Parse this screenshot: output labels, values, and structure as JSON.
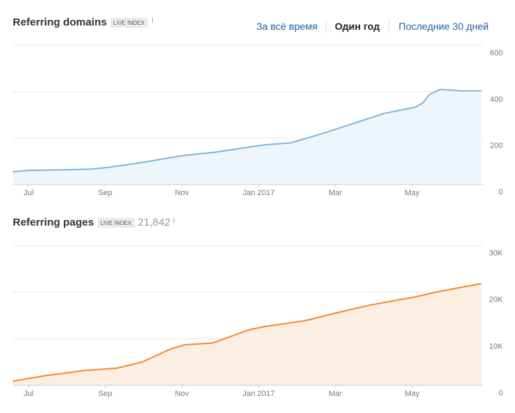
{
  "header": {
    "periods": [
      "За всё время",
      "Один год",
      "Последние 30 дней"
    ]
  },
  "chart_data": [
    {
      "type": "area",
      "title": "Referring domains",
      "badge": "LIVE INDEX",
      "info": "i",
      "color": "#7eb5dc",
      "fill": "#eef6fd",
      "x": [
        -0.41,
        0,
        1.11,
        1.67,
        2.04,
        2.96,
        4.07,
        4.81,
        6.15,
        6.85,
        7.78,
        8.52,
        9.26,
        10.09,
        10.28,
        10.46,
        10.74,
        11.3,
        11.81
      ],
      "values": [
        55,
        61,
        64,
        67,
        73,
        95,
        126,
        138,
        171,
        180,
        226,
        266,
        306,
        334,
        352,
        389,
        410,
        404,
        404
      ],
      "xlim": [
        -0.41,
        11.85
      ],
      "ylim": [
        0,
        600
      ],
      "xticks": [
        {
          "value": 0,
          "label": "Jul"
        },
        {
          "value": 2,
          "label": "Sep"
        },
        {
          "value": 4,
          "label": "Nov"
        },
        {
          "value": 6,
          "label": "Jan 2017"
        },
        {
          "value": 8,
          "label": "Mar"
        },
        {
          "value": 10,
          "label": "May"
        }
      ],
      "yticks": [
        0,
        200,
        400,
        600
      ],
      "grid": true
    },
    {
      "type": "area",
      "title": "Referring pages",
      "badge": "LIVE INDEX",
      "count": "21,842",
      "info": "i",
      "color": "#ef8c2e",
      "fill": "#fdeee2",
      "x": [
        -0.41,
        0.37,
        1.48,
        2.31,
        2.96,
        3.7,
        4.07,
        4.81,
        5.74,
        6.15,
        7.22,
        8.11,
        8.89,
        10.09,
        10.74,
        11.81
      ],
      "values": [
        900,
        2000,
        3200,
        3700,
        5000,
        7800,
        8700,
        9100,
        11900,
        12600,
        13900,
        15700,
        17200,
        19000,
        20200,
        21842
      ],
      "xlim": [
        -0.41,
        11.85
      ],
      "ylim": [
        0,
        30000
      ],
      "xticks": [
        {
          "value": 0,
          "label": "Jul"
        },
        {
          "value": 2,
          "label": "Sep"
        },
        {
          "value": 4,
          "label": "Nov"
        },
        {
          "value": 6,
          "label": "Jan 2017"
        },
        {
          "value": 8,
          "label": "Mar"
        },
        {
          "value": 10,
          "label": "May"
        }
      ],
      "yticks": [
        0,
        {
          "value": 10000,
          "label": "10K"
        },
        {
          "value": 20000,
          "label": "20K"
        },
        {
          "value": 30000,
          "label": "30K"
        }
      ],
      "grid": true
    }
  ]
}
